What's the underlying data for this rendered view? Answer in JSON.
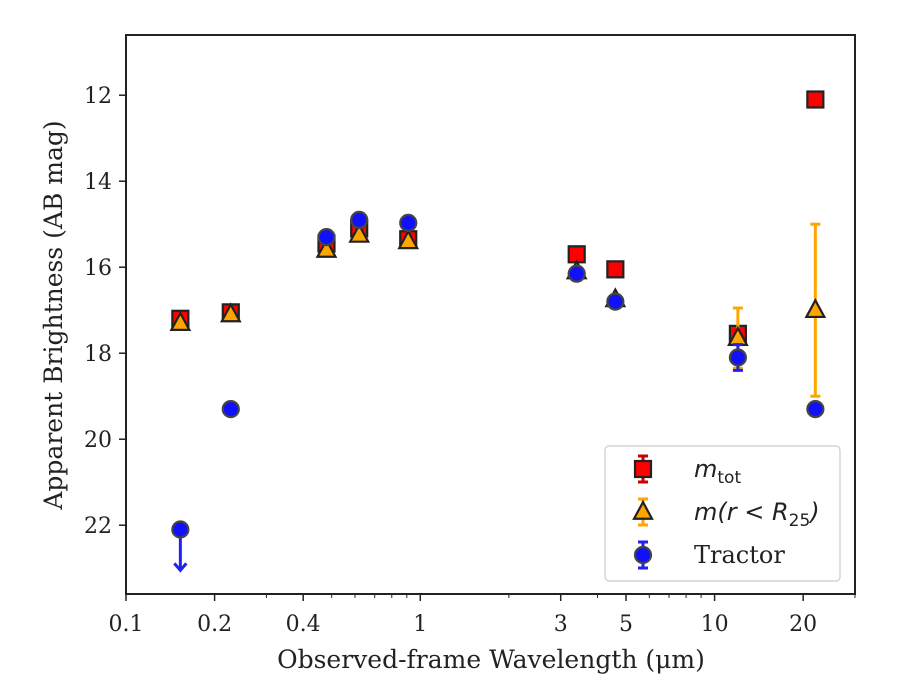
{
  "chart_data": {
    "type": "scatter",
    "title": "",
    "xlabel": "Observed-frame Wavelength (μm)",
    "ylabel": "Apparent Brightness (AB mag)",
    "x_scale": "log",
    "xlim": [
      0.1,
      30
    ],
    "ylim": [
      23.6,
      10.6
    ],
    "y_inverted": true,
    "x_ticks": [
      {
        "value": 0.1,
        "label": "0.1"
      },
      {
        "value": 0.2,
        "label": "0.2"
      },
      {
        "value": 0.4,
        "label": "0.4"
      },
      {
        "value": 1,
        "label": "1"
      },
      {
        "value": 3,
        "label": "3"
      },
      {
        "value": 5,
        "label": "5"
      },
      {
        "value": 10,
        "label": "10"
      },
      {
        "value": 20,
        "label": "20"
      }
    ],
    "y_ticks": [
      12,
      14,
      16,
      18,
      20,
      22
    ],
    "grid": false,
    "legend_position": "bottom-right",
    "series": [
      {
        "name": "m_tot",
        "legend_label": {
          "main": "m",
          "sub": "tot"
        },
        "marker": "square",
        "color": "#ff0000",
        "edge_color": "#222222",
        "error_color": "#cc0000",
        "points": [
          {
            "x": 0.153,
            "y": 17.2,
            "err": 0.1
          },
          {
            "x": 0.227,
            "y": 17.05,
            "err": 0.1
          },
          {
            "x": 0.48,
            "y": 15.45,
            "err": 0.1
          },
          {
            "x": 0.62,
            "y": 15.1,
            "err": 0.1
          },
          {
            "x": 0.91,
            "y": 15.35,
            "err": 0.1
          },
          {
            "x": 3.4,
            "y": 15.7,
            "err": 0.05
          },
          {
            "x": 4.6,
            "y": 16.05,
            "err": 0.05
          },
          {
            "x": 12,
            "y": 17.55,
            "err": 0.1
          },
          {
            "x": 22,
            "y": 12.1,
            "err": 0.05
          }
        ]
      },
      {
        "name": "m(r < R25)",
        "legend_label": {
          "main": "m(r < R",
          "sub": "25",
          "tail": ")"
        },
        "marker": "triangle",
        "color": "#ffa500",
        "edge_color": "#222222",
        "error_color": "#ffa500",
        "points": [
          {
            "x": 0.153,
            "y": 17.3,
            "err": 0.05
          },
          {
            "x": 0.227,
            "y": 17.1,
            "err": 0.05
          },
          {
            "x": 0.48,
            "y": 15.6,
            "err": 0.05
          },
          {
            "x": 0.62,
            "y": 15.25,
            "err": 0.05
          },
          {
            "x": 0.91,
            "y": 15.4,
            "err": 0.05
          },
          {
            "x": 3.4,
            "y": 16.1,
            "err": 0.05
          },
          {
            "x": 4.6,
            "y": 16.75,
            "err": 0.05
          },
          {
            "x": 12,
            "y": 17.65,
            "err": 0.7
          },
          {
            "x": 22,
            "y": 17.0,
            "err": 2.0
          }
        ]
      },
      {
        "name": "Tractor",
        "legend_label": {
          "main": "Tractor"
        },
        "marker": "circle",
        "color": "#1010ff",
        "edge_color": "#444444",
        "error_color": "#2222ee",
        "points": [
          {
            "x": 0.153,
            "y": 22.1,
            "err": 0.0,
            "upper_limit": true
          },
          {
            "x": 0.227,
            "y": 19.3,
            "err": 0.05
          },
          {
            "x": 0.48,
            "y": 15.3,
            "err": 0.05
          },
          {
            "x": 0.62,
            "y": 14.9,
            "err": 0.05
          },
          {
            "x": 0.91,
            "y": 14.97,
            "err": 0.05
          },
          {
            "x": 3.4,
            "y": 16.15,
            "err": 0.05
          },
          {
            "x": 4.6,
            "y": 16.8,
            "err": 0.05
          },
          {
            "x": 12,
            "y": 18.1,
            "err": 0.3
          },
          {
            "x": 22,
            "y": 19.3,
            "err": 0.05
          }
        ]
      }
    ]
  }
}
